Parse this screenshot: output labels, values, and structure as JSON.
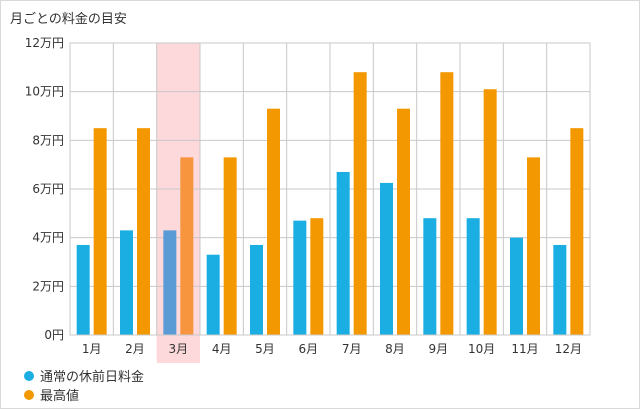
{
  "page": {
    "title": "月ごとの料金の目安"
  },
  "chart_data": {
    "type": "bar",
    "title": "月ごとの料金の目安",
    "categories": [
      "1月",
      "2月",
      "3月",
      "4月",
      "5月",
      "6月",
      "7月",
      "8月",
      "9月",
      "10月",
      "11月",
      "12月"
    ],
    "series": [
      {
        "name": "通常の休前日料金",
        "color": "#1aaee2",
        "values": [
          3.7,
          4.3,
          4.3,
          3.3,
          3.7,
          4.7,
          6.7,
          6.25,
          4.8,
          4.8,
          4.0,
          3.7
        ]
      },
      {
        "name": "最高値",
        "color": "#f39800",
        "values": [
          8.5,
          8.5,
          7.3,
          7.3,
          9.3,
          4.8,
          10.8,
          9.3,
          10.8,
          10.1,
          7.3,
          8.5
        ]
      }
    ],
    "ylim": [
      0,
      12
    ],
    "yticks": [
      0,
      2,
      4,
      6,
      8,
      10,
      12
    ],
    "ytick_labels": [
      "0円",
      "2万円",
      "4万円",
      "6万円",
      "8万円",
      "10万円",
      "12万円"
    ],
    "highlight_category": "3月",
    "highlight_color": "#fdd9dc",
    "highlight_series_colors": [
      "#5b9bd5",
      "#f7953f"
    ],
    "grid": true,
    "legend_position": "bottom-left"
  }
}
